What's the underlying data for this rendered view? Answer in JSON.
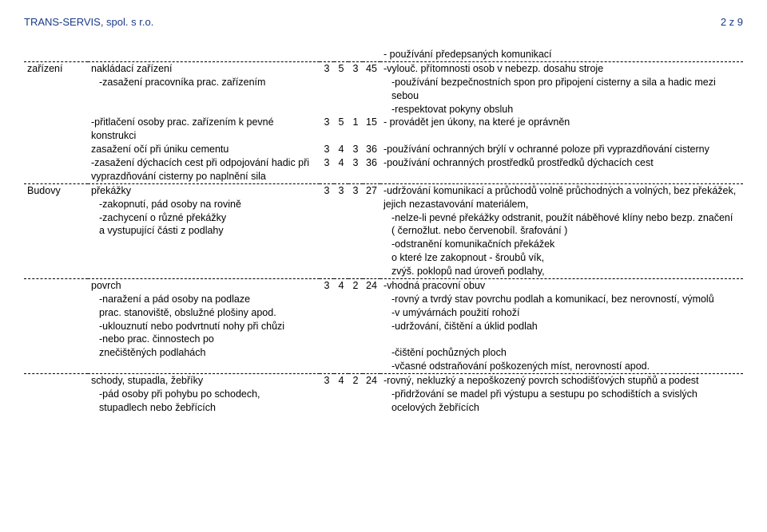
{
  "header": {
    "company": "TRANS-SERVIS, spol. s r.o.",
    "page": "2 z 9"
  },
  "pre_right": "- používání předepsaných komunikací",
  "rows": [
    {
      "left": "zařízení",
      "mid": "nakládací zařízení",
      "mid_sub": [
        " -zasažení pracovníka prac. zařízením"
      ],
      "n1": "3",
      "n2": "5",
      "n3": "3",
      "r": "45",
      "right": "-vylouč. přítomnosti osob v nebezp. dosahu stroje",
      "right_sub": [
        "-používání bezpečnostních spon pro připojení cisterny a sila a hadic mezi sebou",
        "-respektovat pokyny obsluh"
      ],
      "dash": true
    },
    {
      "left": "",
      "mid": "-přitlačení osoby prac. zařízením k pevné konstrukci",
      "mid_sub": [],
      "n1": "3",
      "n2": "5",
      "n3": "1",
      "r": "15",
      "right": "- provádět jen úkony, na které je oprávněn",
      "right_sub": [],
      "dash": false
    },
    {
      "left": "",
      "mid": " zasažení očí při úniku cementu",
      "mid_sub": [],
      "n1": "3",
      "n2": "4",
      "n3": "3",
      "r": "36",
      "right": "-používání ochranných brýlí v ochranné poloze při vyprazdňování cisterny",
      "right_sub": [],
      "dash": false
    },
    {
      "left": "",
      "mid": "-zasažení dýchacích cest při odpojování hadic při vyprazdňování cisterny po naplnění sila",
      "mid_sub": [],
      "n1": "3",
      "n2": "4",
      "n3": "3",
      "r": "36",
      "right": "-používání ochranných prostředků prostředků dýchacích cest",
      "right_sub": [],
      "dash": false
    },
    {
      "left": "Budovy",
      "mid": "překážky",
      "mid_sub": [
        "-zakopnutí, pád osoby na rovině",
        "-zachycení o různé překážky",
        " a vystupující části z podlahy"
      ],
      "n1": "3",
      "n2": "3",
      "n3": "3",
      "r": "27",
      "right": "-udržování komunikací a průchodů volně průchodných a volných, bez překážek, jejich nezastavování materiálem,",
      "right_sub": [
        "-nelze-li pevné překážky odstranit, použít náběhové klíny nebo bezp. značení",
        " ( černožlut. nebo červenobíl. šrafování )",
        "-odstranění komunikačních překážek",
        " o které lze zakopnout - šroubů vík,",
        " zvýš. poklopů nad úroveň podlahy,"
      ],
      "dash": true
    },
    {
      "left": "",
      "mid": "povrch",
      "mid_sub": [
        "-naražení a pád osoby na podlaze",
        " prac. stanoviště, obslužné plošiny apod.",
        "-uklouznutí nebo podvrtnutí nohy při chůzi",
        "-nebo prac. činnostech po",
        " znečištěných podlahách"
      ],
      "n1": "3",
      "n2": "4",
      "n3": "2",
      "r": "24",
      "right": "-vhodná pracovní obuv",
      "right_sub": [
        "-rovný a tvrdý stav povrchu podlah a komunikací, bez nerovností, výmolů",
        "-v umývárnách použití rohoží",
        "-udržování, čištění a úklid podlah",
        " ",
        "-čištění pochůzných ploch",
        "-včasné odstraňování poškozených míst, nerovností apod."
      ],
      "dash": true
    },
    {
      "left": "",
      "mid": "schody, stupadla, žebříky",
      "mid_sub": [
        "-pád osoby při pohybu po schodech,",
        " stupadlech nebo žebřících"
      ],
      "n1": "3",
      "n2": "4",
      "n3": "2",
      "r": "24",
      "right": "-rovný, nekluzký a nepoškozený povrch schodišťových stupňů a podest",
      "right_sub": [
        "-přidržování se madel při výstupu a sestupu po schodištích a svislých ocelových žebřících"
      ],
      "dash": true
    }
  ]
}
